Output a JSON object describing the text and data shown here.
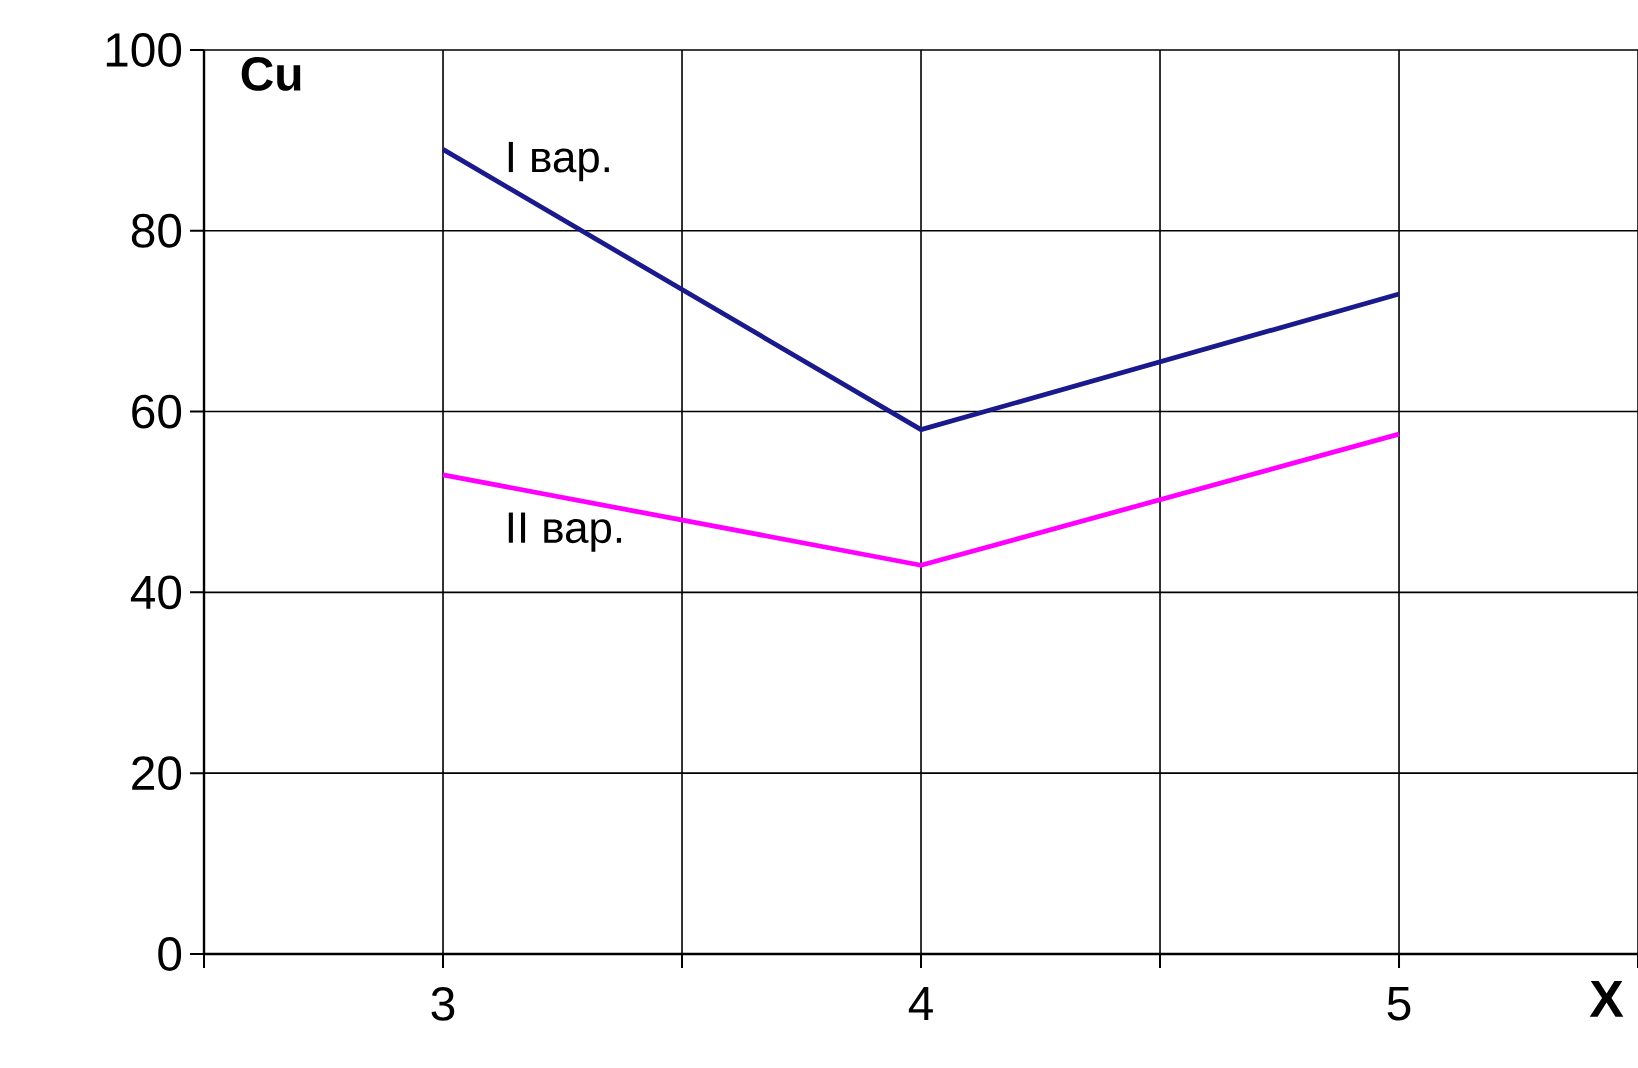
{
  "chart_data": {
    "type": "line",
    "xlabel": "X",
    "ylabel": "Cu",
    "x": [
      3,
      4,
      5
    ],
    "series": [
      {
        "name": "I вар.",
        "color": "#1a1a8c",
        "values": [
          89,
          58,
          73
        ]
      },
      {
        "name": "II вар.",
        "color": "#ff00ff",
        "values": [
          53,
          43,
          57.5
        ]
      }
    ],
    "xlim": [
      2.5,
      5.5
    ],
    "ylim": [
      0,
      100
    ],
    "xticks": [
      {
        "value": 2.5,
        "label": null
      },
      3,
      {
        "value": 3.5,
        "label": null
      },
      4,
      {
        "value": 4.5,
        "label": null
      },
      5,
      {
        "value": 5.5,
        "label": null
      }
    ],
    "yticks": [
      0,
      20,
      40,
      60,
      80,
      100
    ],
    "grid": true,
    "marker": "none",
    "line_style": "solid"
  }
}
